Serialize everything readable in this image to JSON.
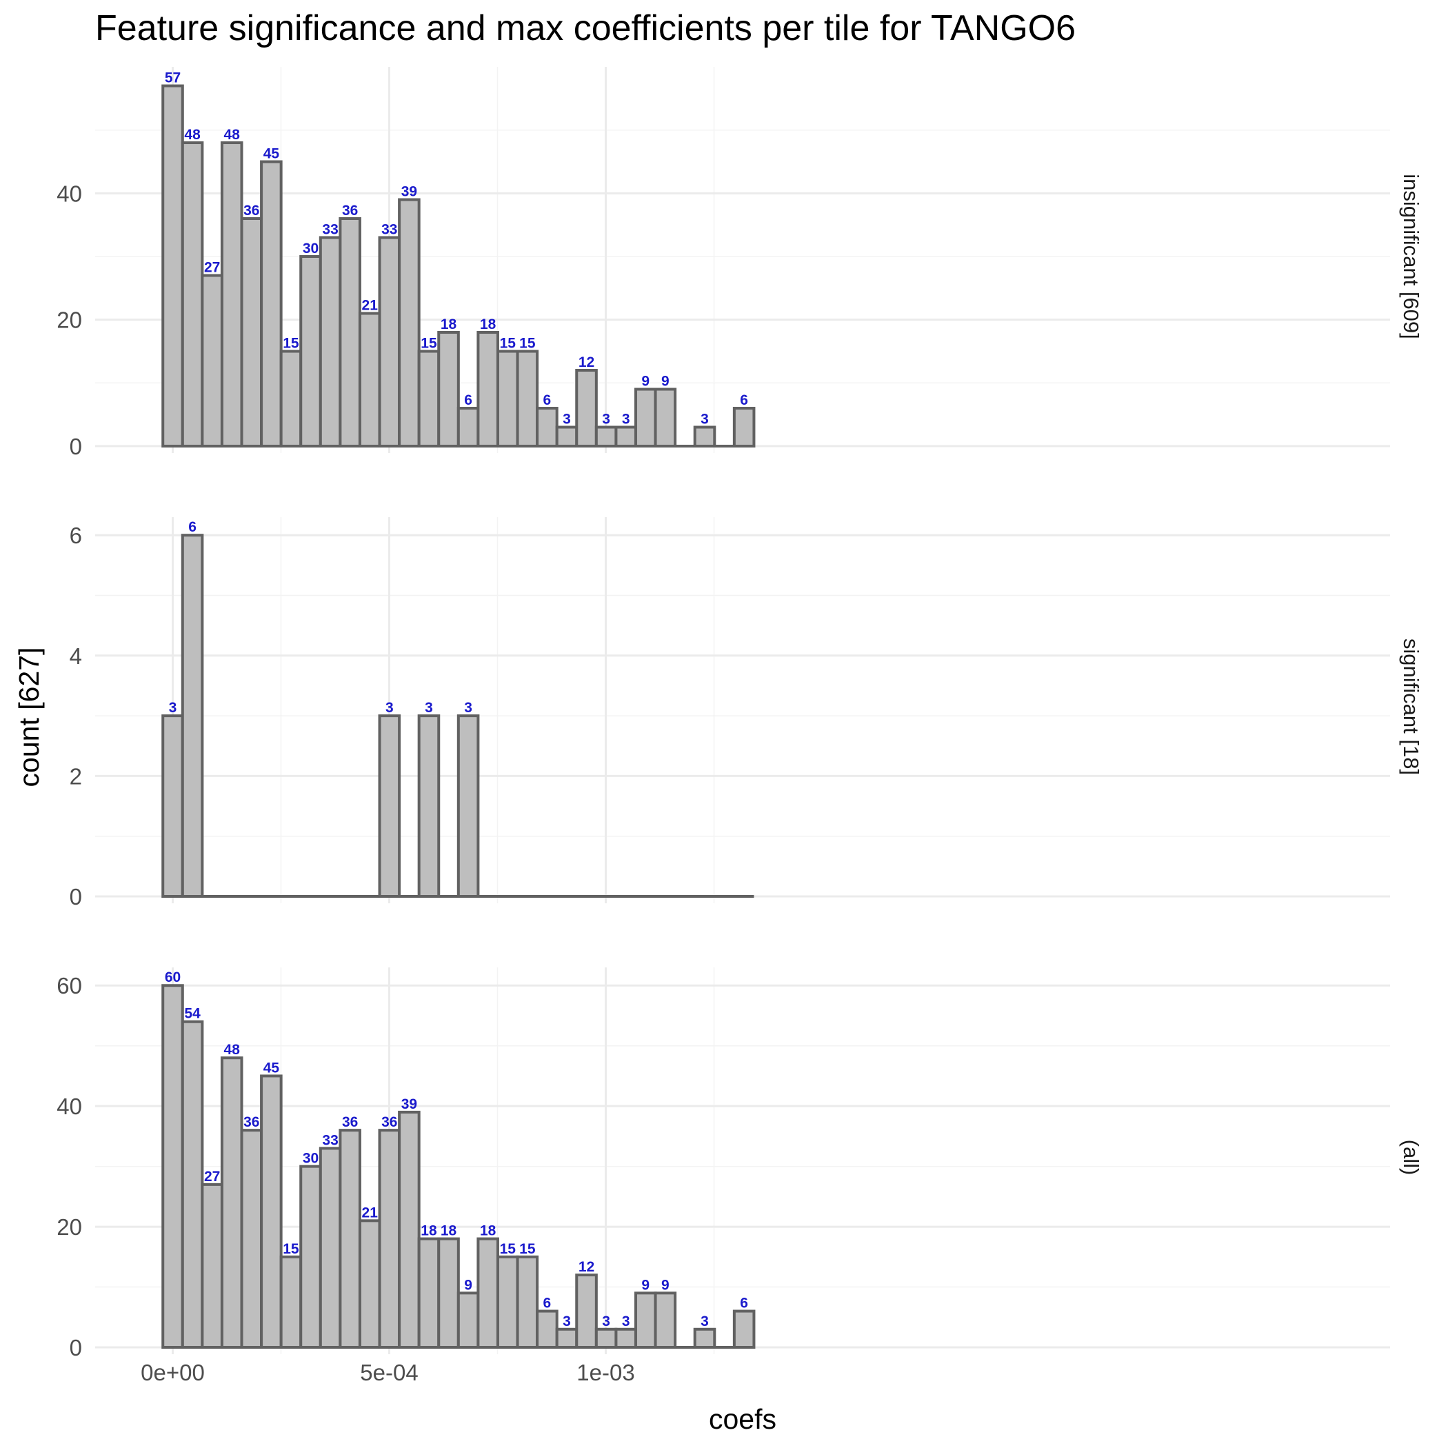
{
  "chart_data": {
    "type": "bar",
    "title": "Feature significance and max coefficients per tile for TANGO6",
    "xlabel": "coefs",
    "ylabel": "count [627]",
    "x_ticks": [
      {
        "value": 0,
        "label": "0e+00"
      },
      {
        "value": 0.0005,
        "label": "5e-04"
      },
      {
        "value": 0.001,
        "label": "1e-03"
      }
    ],
    "bin_centers": [
      0.0,
      4.55e-05,
      9.1e-05,
      0.0001365,
      0.000182,
      0.0002275,
      0.000273,
      0.0003185,
      0.000364,
      0.0004095,
      0.000455,
      0.0005005,
      0.000546,
      0.0005915,
      0.000637,
      0.0006825,
      0.000728,
      0.0007735,
      0.000819,
      0.0008645,
      0.00091,
      0.0009555,
      0.001001,
      0.0010465,
      0.001092,
      0.0011375,
      0.001183,
      0.0012285,
      0.001274,
      0.0013195
    ],
    "grid": true,
    "panels": [
      {
        "strip": "insignificant [609]",
        "ylim": [
          0,
          60
        ],
        "y_ticks": [
          0,
          20,
          40
        ],
        "values": [
          57,
          48,
          27,
          48,
          36,
          45,
          15,
          30,
          33,
          36,
          21,
          33,
          39,
          15,
          18,
          6,
          18,
          15,
          15,
          6,
          3,
          12,
          3,
          3,
          9,
          9,
          0,
          3,
          0,
          6
        ]
      },
      {
        "strip": "significant [18]",
        "ylim": [
          0,
          6.3
        ],
        "y_ticks": [
          0,
          2,
          4,
          6
        ],
        "values": [
          3,
          6,
          0,
          0,
          0,
          0,
          0,
          0,
          0,
          0,
          0,
          3,
          0,
          3,
          0,
          3,
          0,
          0,
          0,
          0,
          0,
          0,
          0,
          0,
          0,
          0,
          0,
          0,
          0,
          0
        ]
      },
      {
        "strip": "(all)",
        "ylim": [
          0,
          63
        ],
        "y_ticks": [
          0,
          20,
          40,
          60
        ],
        "values": [
          60,
          54,
          27,
          48,
          36,
          45,
          15,
          30,
          33,
          36,
          21,
          36,
          39,
          18,
          18,
          9,
          18,
          15,
          15,
          6,
          3,
          12,
          3,
          3,
          9,
          9,
          0,
          3,
          0,
          6
        ]
      }
    ]
  }
}
